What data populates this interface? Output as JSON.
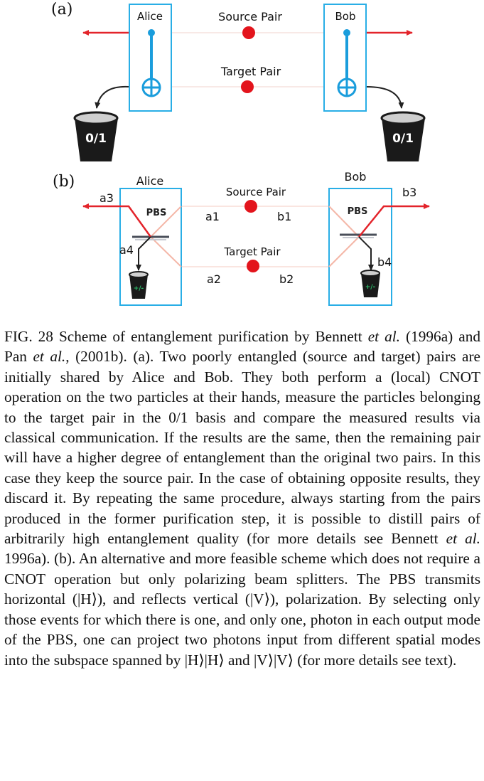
{
  "panel_a": {
    "label": "(a)",
    "alice_label": "Alice",
    "bob_label": "Bob",
    "source_pair_label": "Source Pair",
    "target_pair_label": "Target Pair",
    "alice_detector": "0/1",
    "bob_detector": "0/1"
  },
  "panel_b": {
    "label": "(b)",
    "alice_label": "Alice",
    "bob_label": "Bob",
    "source_pair_label": "Source Pair",
    "target_pair_label": "Target Pair",
    "alice_pbs": "PBS",
    "bob_pbs": "PBS",
    "a1": "a1",
    "a2": "a2",
    "a3": "a3",
    "a4": "a4",
    "b1": "b1",
    "b2": "b2",
    "b3": "b3",
    "b4": "b4",
    "alice_detector": "+/-",
    "bob_detector": "+/-"
  },
  "colors": {
    "box": "#29aee6",
    "cnot": "#1a9ddc",
    "photon": "#e3141c",
    "arrow": "#e3242b",
    "beam_faint": "#f4b7a8"
  },
  "caption": {
    "intro": "FIG. 28 Scheme of entanglement purification by Bennett",
    "et1": "et al.",
    "mid1": "(1996a) and Pan",
    "et2": "et al.",
    "mid2": ", (2001b). (a). Two poorly entangled (source and target) pairs are initially shared by Alice and Bob. They both perform a (local) CNOT operation on the two particles at their hands, measure the particles belonging to the target pair in the 0/1 basis and compare the measured results via classical communication. If the results are the same, then the remaining pair will have a higher degree of entanglement than the original two pairs. In this case they keep the source pair. In the case of obtaining opposite results, they discard it. By repeating the same procedure, always starting from the pairs produced in the former purification step, it is possible to distill pairs of arbitrarily high entanglement quality (for more details see Bennett",
    "et3": "et al.",
    "mid3": "1996a). (b). An alternative and more feasible scheme which does not require a CNOT operation but only polarizing beam splitters. The PBS transmits horizontal (|H⟩), and reflects vertical (|V⟩), polarization. By selecting only those events for which there is one, and only one, photon in each output mode of the PBS, one can project two photons input from different spatial modes into the subspace spanned by |H⟩|H⟩ and |V⟩|V⟩ (for more details see text)."
  }
}
